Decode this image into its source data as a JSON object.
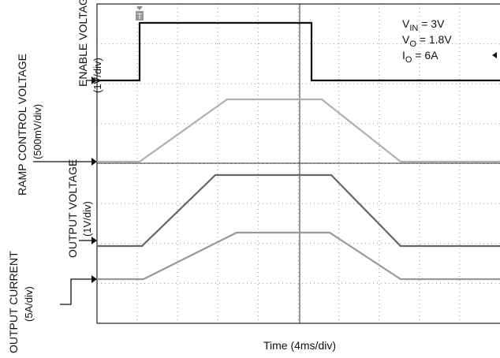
{
  "channels": [
    {
      "name": "ENABLE VOLTAGE",
      "scale": "(1V/div)"
    },
    {
      "name": "RAMP CONTROL VOLTAGE",
      "scale": "(500mV/div)"
    },
    {
      "name": "OUTPUT VOLTAGE",
      "scale": "(1V/div)"
    },
    {
      "name": "OUTPUT CURRENT",
      "scale": "(5A/div)"
    }
  ],
  "conditions": [
    {
      "symbol": "V",
      "sub": "IN",
      "text": " = 3V"
    },
    {
      "symbol": "V",
      "sub": "O",
      "text": " = 1.8V"
    },
    {
      "symbol": "I",
      "sub": "O",
      "text": " = 6A"
    }
  ],
  "trigger": "T",
  "x_axis": "Time (4ms/div)"
}
